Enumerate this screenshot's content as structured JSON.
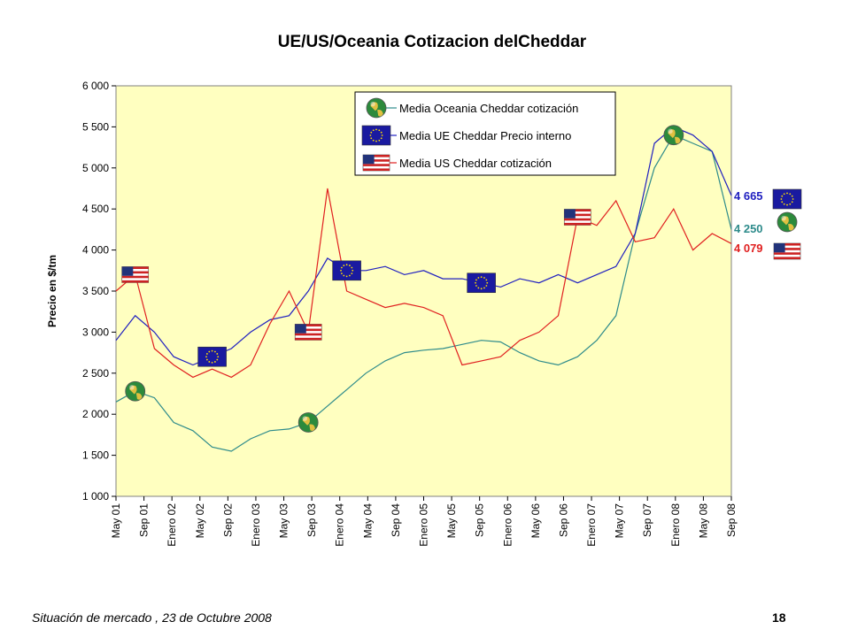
{
  "chart_data": {
    "type": "line",
    "title": "UE/US/Oceania Cotizacion delCheddar",
    "ylabel": "Precio en $/tm",
    "ylim": [
      1000,
      6000
    ],
    "yticks": [
      1000,
      1500,
      2000,
      2500,
      3000,
      3500,
      4000,
      4500,
      5000,
      5500,
      6000
    ],
    "ytick_labels": [
      "1 000",
      "1 500",
      "2 000",
      "2 500",
      "3 000",
      "3 500",
      "4 000",
      "4 500",
      "5 000",
      "5 500",
      "6 000"
    ],
    "xticks": [
      "May 01",
      "Sep 01",
      "Enero 02",
      "May 02",
      "Sep 02",
      "Enero 03",
      "May 03",
      "Sep 03",
      "Enero 04",
      "May 04",
      "Sep 04",
      "Enero 05",
      "May 05",
      "Sep 05",
      "Enero 06",
      "May 06",
      "Sep 06",
      "Enero 07",
      "May 07",
      "Sep 07",
      "Enero 08",
      "May 08",
      "Sep 08"
    ],
    "grid": false,
    "legend_position": "top-center",
    "background": "#ffffc0",
    "series": [
      {
        "name": "Media Oceania Cheddar cotización",
        "color": "#2e8b8b",
        "icon": "globe-icon",
        "end_label": "4 250",
        "values": [
          2150,
          2280,
          2200,
          1900,
          1800,
          1600,
          1550,
          1700,
          1800,
          1820,
          1900,
          2100,
          2300,
          2500,
          2650,
          2750,
          2780,
          2800,
          2850,
          2900,
          2880,
          2750,
          2650,
          2600,
          2700,
          2900,
          3200,
          4200,
          5000,
          5400,
          5300,
          5200,
          4250
        ]
      },
      {
        "name": "Media UE Cheddar Precio interno",
        "color": "#2020c0",
        "icon": "eu-flag-icon",
        "end_label": "4 665",
        "values": [
          2900,
          3200,
          3000,
          2700,
          2600,
          2700,
          2800,
          3000,
          3150,
          3200,
          3500,
          3900,
          3750,
          3750,
          3800,
          3700,
          3750,
          3650,
          3650,
          3600,
          3550,
          3650,
          3600,
          3700,
          3600,
          3700,
          3800,
          4200,
          5300,
          5500,
          5400,
          5200,
          4665
        ]
      },
      {
        "name": "Media US Cheddar cotización",
        "color": "#e02020",
        "icon": "us-flag-icon",
        "end_label": "4 079",
        "values": [
          3500,
          3700,
          2800,
          2600,
          2450,
          2550,
          2450,
          2600,
          3100,
          3500,
          3000,
          4750,
          3500,
          3400,
          3300,
          3350,
          3300,
          3200,
          2600,
          2650,
          2700,
          2900,
          3000,
          3200,
          4400,
          4300,
          4600,
          4100,
          4150,
          4500,
          4000,
          4200,
          4079
        ]
      }
    ]
  },
  "footer": "Situación de mercado , 23 de  Octubre 2008",
  "page_number": "18"
}
